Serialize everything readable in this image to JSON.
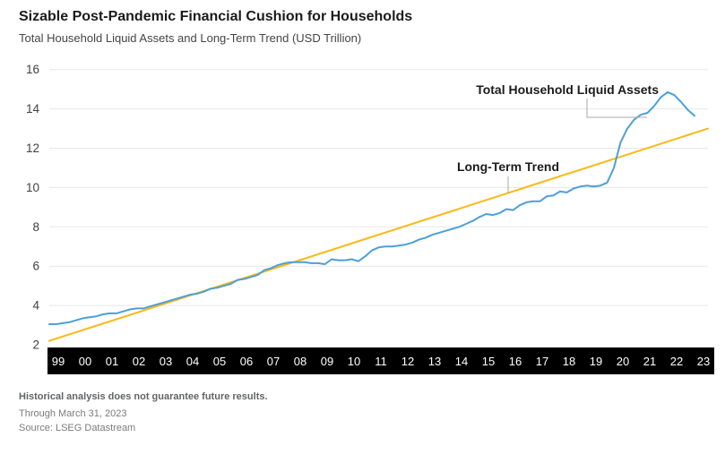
{
  "header": {
    "title": "Sizable Post-Pandemic Financial Cushion for Households",
    "subtitle": "Total Household Liquid Assets and Long-Term Trend (USD Trillion)"
  },
  "chart_data": {
    "type": "line",
    "title": "Sizable Post-Pandemic Financial Cushion for Households",
    "subtitle": "Total Household Liquid Assets and Long-Term Trend (USD Trillion)",
    "unit": "USD Trillion",
    "frequency": "quarterly",
    "x_range": [
      "Q1 1999",
      "Q1 2023"
    ],
    "x_tick_labels": [
      "99",
      "00",
      "01",
      "02",
      "03",
      "04",
      "05",
      "06",
      "07",
      "08",
      "09",
      "10",
      "11",
      "12",
      "13",
      "14",
      "15",
      "16",
      "17",
      "18",
      "19",
      "20",
      "21",
      "22",
      "23"
    ],
    "y_ticks": [
      2,
      4,
      6,
      8,
      10,
      12,
      14,
      16
    ],
    "ylim": [
      1.85,
      16.35
    ],
    "grid": "horizontal-only",
    "legend": "inline-annotations",
    "series": [
      {
        "name": "Total Household Liquid Assets",
        "color": "#4D9FD9",
        "values": [
          3.05,
          3.05,
          3.1,
          3.15,
          3.25,
          3.35,
          3.4,
          3.45,
          3.55,
          3.6,
          3.6,
          3.7,
          3.8,
          3.85,
          3.85,
          3.95,
          4.05,
          4.15,
          4.25,
          4.35,
          4.45,
          4.55,
          4.6,
          4.7,
          4.85,
          4.9,
          5.0,
          5.1,
          5.3,
          5.35,
          5.45,
          5.55,
          5.8,
          5.9,
          6.05,
          6.15,
          6.2,
          6.2,
          6.2,
          6.15,
          6.15,
          6.1,
          6.35,
          6.3,
          6.3,
          6.35,
          6.25,
          6.5,
          6.8,
          6.95,
          7.0,
          7.0,
          7.05,
          7.1,
          7.2,
          7.35,
          7.45,
          7.6,
          7.7,
          7.8,
          7.9,
          8.0,
          8.15,
          8.3,
          8.5,
          8.65,
          8.6,
          8.7,
          8.9,
          8.85,
          9.1,
          9.25,
          9.3,
          9.3,
          9.55,
          9.6,
          9.8,
          9.75,
          9.95,
          10.05,
          10.1,
          10.05,
          10.1,
          10.25,
          11.0,
          12.3,
          13.0,
          13.45,
          13.7,
          13.8,
          14.15,
          14.6,
          14.85,
          14.7,
          14.35,
          13.95,
          13.65
        ]
      },
      {
        "name": "Long-Term Trend",
        "color": "#FCB813",
        "shape": "linear",
        "start_value": 2.2,
        "end_value": 13.0
      }
    ],
    "annotations": [
      {
        "text": "Total Household Liquid Assets"
      },
      {
        "text": "Long-Term Trend"
      }
    ]
  },
  "footer": {
    "disclaimer": "Historical analysis does not guarantee future results.",
    "through": "Through March 31, 2023",
    "source": "Source: LSEG Datastream"
  },
  "colors": {
    "assets_line": "#4D9FD9",
    "trend_line": "#FCB813",
    "gridline": "#E8E7E7",
    "axis_band": "#000000",
    "axis_band_text": "#FFFFFF",
    "y_tick_text": "#414042",
    "connector": "#A9AAAC"
  }
}
